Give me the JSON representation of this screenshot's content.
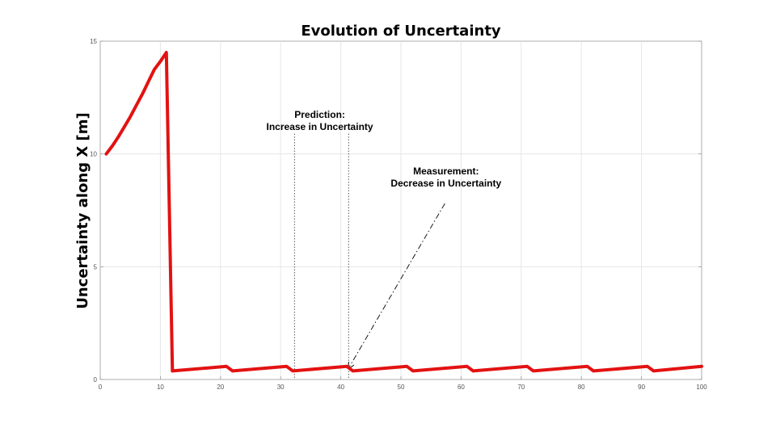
{
  "chart_data": {
    "type": "line",
    "title": "Evolution of Uncertainty",
    "xlabel": "",
    "ylabel": "Uncertainty along X [m]",
    "xlim": [
      0,
      100
    ],
    "ylim": [
      0,
      15
    ],
    "xticks": [
      0,
      10,
      20,
      30,
      40,
      50,
      60,
      70,
      80,
      90,
      100
    ],
    "yticks": [
      0,
      5,
      10,
      15
    ],
    "grid": true,
    "series": [
      {
        "color": "#e31212",
        "x": [
          1,
          2,
          3,
          4,
          5,
          6,
          7,
          8,
          9,
          10,
          11,
          12,
          21,
          22,
          31,
          32,
          41,
          42,
          51,
          52,
          61,
          62,
          71,
          72,
          81,
          82,
          91,
          92,
          100
        ],
        "y": [
          10.0,
          10.35,
          10.75,
          11.2,
          11.65,
          12.15,
          12.65,
          13.2,
          13.75,
          14.1,
          14.5,
          0.38,
          0.58,
          0.38,
          0.58,
          0.38,
          0.58,
          0.38,
          0.58,
          0.38,
          0.58,
          0.38,
          0.58,
          0.38,
          0.58,
          0.38,
          0.58,
          0.38,
          0.58
        ]
      }
    ],
    "annotations": [
      {
        "id": "prediction",
        "lines": [
          "Prediction:",
          "Increase in Uncertainty"
        ],
        "text_x": 36.5,
        "text_y": 11.6,
        "vlines": [
          32.3,
          41.3
        ],
        "vline_top": 10.9
      },
      {
        "id": "measurement",
        "lines": [
          "Measurement:",
          "Decrease in Uncertainty"
        ],
        "text_x": 57.5,
        "text_y": 9.1,
        "arrow_from": [
          57.3,
          7.8
        ],
        "arrow_to": [
          41.3,
          0.5
        ]
      }
    ]
  }
}
